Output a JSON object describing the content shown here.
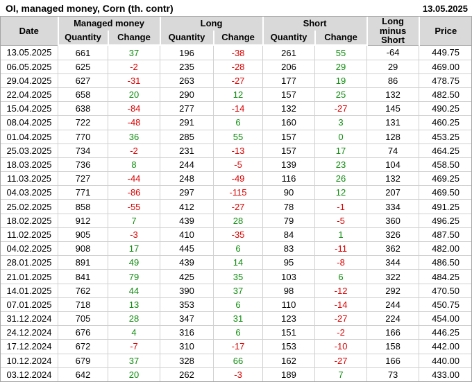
{
  "titlebar": {
    "title": "OI, managed money, Corn (th. contr)",
    "report_date": "13.05.2025"
  },
  "colors": {
    "positive": "#0f8c0f",
    "negative": "#dd0000",
    "header_bg": "#d9d9d9"
  },
  "table": {
    "columns": {
      "date": "Date",
      "long_minus_short": "Long minus Short",
      "price": "Price"
    },
    "groups": [
      {
        "label": "Managed money",
        "subs": [
          "Quantity",
          "Change"
        ]
      },
      {
        "label": "Long",
        "subs": [
          "Quantity",
          "Change"
        ]
      },
      {
        "label": "Short",
        "subs": [
          "Quantity",
          "Change"
        ]
      }
    ],
    "col_names": [
      "date",
      "mm-quantity",
      "mm-change",
      "long-quantity",
      "long-change",
      "short-quantity",
      "short-change",
      "long-minus-short",
      "price"
    ],
    "change_col_indexes": [
      2,
      4,
      6
    ],
    "rows": [
      [
        "13.05.2025",
        "661",
        "37",
        "196",
        "-38",
        "261",
        "55",
        "-64",
        "449.75"
      ],
      [
        "06.05.2025",
        "625",
        "-2",
        "235",
        "-28",
        "206",
        "29",
        "29",
        "469.00"
      ],
      [
        "29.04.2025",
        "627",
        "-31",
        "263",
        "-27",
        "177",
        "19",
        "86",
        "478.75"
      ],
      [
        "22.04.2025",
        "658",
        "20",
        "290",
        "12",
        "157",
        "25",
        "132",
        "482.50"
      ],
      [
        "15.04.2025",
        "638",
        "-84",
        "277",
        "-14",
        "132",
        "-27",
        "145",
        "490.25"
      ],
      [
        "08.04.2025",
        "722",
        "-48",
        "291",
        "6",
        "160",
        "3",
        "131",
        "460.25"
      ],
      [
        "01.04.2025",
        "770",
        "36",
        "285",
        "55",
        "157",
        "0",
        "128",
        "453.25"
      ],
      [
        "25.03.2025",
        "734",
        "-2",
        "231",
        "-13",
        "157",
        "17",
        "74",
        "464.25"
      ],
      [
        "18.03.2025",
        "736",
        "8",
        "244",
        "-5",
        "139",
        "23",
        "104",
        "458.50"
      ],
      [
        "11.03.2025",
        "727",
        "-44",
        "248",
        "-49",
        "116",
        "26",
        "132",
        "469.25"
      ],
      [
        "04.03.2025",
        "771",
        "-86",
        "297",
        "-115",
        "90",
        "12",
        "207",
        "469.50"
      ],
      [
        "25.02.2025",
        "858",
        "-55",
        "412",
        "-27",
        "78",
        "-1",
        "334",
        "491.25"
      ],
      [
        "18.02.2025",
        "912",
        "7",
        "439",
        "28",
        "79",
        "-5",
        "360",
        "496.25"
      ],
      [
        "11.02.2025",
        "905",
        "-3",
        "410",
        "-35",
        "84",
        "1",
        "326",
        "487.50"
      ],
      [
        "04.02.2025",
        "908",
        "17",
        "445",
        "6",
        "83",
        "-11",
        "362",
        "482.00"
      ],
      [
        "28.01.2025",
        "891",
        "49",
        "439",
        "14",
        "95",
        "-8",
        "344",
        "486.50"
      ],
      [
        "21.01.2025",
        "841",
        "79",
        "425",
        "35",
        "103",
        "6",
        "322",
        "484.25"
      ],
      [
        "14.01.2025",
        "762",
        "44",
        "390",
        "37",
        "98",
        "-12",
        "292",
        "470.50"
      ],
      [
        "07.01.2025",
        "718",
        "13",
        "353",
        "6",
        "110",
        "-14",
        "244",
        "450.75"
      ],
      [
        "31.12.2024",
        "705",
        "28",
        "347",
        "31",
        "123",
        "-27",
        "224",
        "454.00"
      ],
      [
        "24.12.2024",
        "676",
        "4",
        "316",
        "6",
        "151",
        "-2",
        "166",
        "446.25"
      ],
      [
        "17.12.2024",
        "672",
        "-7",
        "310",
        "-17",
        "153",
        "-10",
        "158",
        "442.00"
      ],
      [
        "10.12.2024",
        "679",
        "37",
        "328",
        "66",
        "162",
        "-27",
        "166",
        "440.00"
      ],
      [
        "03.12.2024",
        "642",
        "20",
        "262",
        "-3",
        "189",
        "7",
        "73",
        "433.00"
      ]
    ]
  }
}
